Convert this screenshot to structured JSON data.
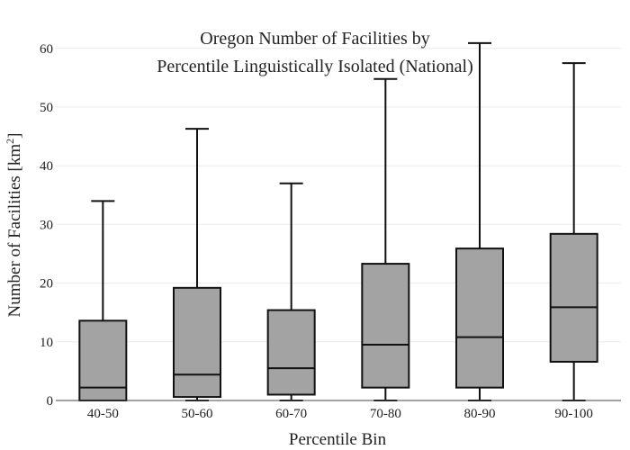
{
  "chart_data": {
    "type": "box",
    "title_lines": [
      "Oregon Number of Facilities by",
      "Percentile Linguistically Isolated (National)"
    ],
    "xlabel": "Percentile Bin",
    "ylabel_main": "Number of Facilities  [km",
    "ylabel_sup": "2",
    "ylabel_end": "]",
    "ylim": [
      0,
      62
    ],
    "yticks": [
      0,
      10,
      20,
      30,
      40,
      50,
      60
    ],
    "grid": true,
    "box_color": "#a3a3a3",
    "categories": [
      "40-50",
      "50-60",
      "60-70",
      "70-80",
      "80-90",
      "90-100"
    ],
    "boxes": [
      {
        "min": 0,
        "q1": 0.0,
        "median": 2.2,
        "q3": 13.6,
        "max": 34
      },
      {
        "min": 0,
        "q1": 0.6,
        "median": 4.4,
        "q3": 19.2,
        "max": 46.3
      },
      {
        "min": 0,
        "q1": 1.0,
        "median": 5.5,
        "q3": 15.4,
        "max": 37
      },
      {
        "min": 0,
        "q1": 2.2,
        "median": 9.5,
        "q3": 23.3,
        "max": 54.8
      },
      {
        "min": 0,
        "q1": 2.2,
        "median": 10.8,
        "q3": 25.9,
        "max": 60.9
      },
      {
        "min": 0,
        "q1": 6.6,
        "median": 15.9,
        "q3": 28.4,
        "max": 57.5
      }
    ]
  }
}
